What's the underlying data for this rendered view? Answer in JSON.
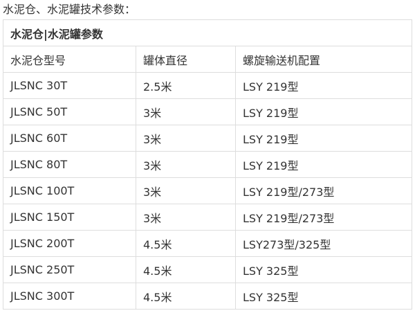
{
  "title": "水泥仓、水泥罐技术参数：",
  "table": {
    "caption": "水泥仓|水泥罐参数",
    "headers": [
      "水泥仓型号",
      "罐体直径",
      "螺旋输送机配置"
    ],
    "rows": [
      [
        "JLSNC 30T",
        "2.5米",
        "LSY 219型"
      ],
      [
        "JLSNC 50T",
        "3米",
        "LSY 219型"
      ],
      [
        "JLSNC 60T",
        "3米",
        "LSY 219型"
      ],
      [
        "JLSNC 80T",
        "3米",
        "LSY 219型"
      ],
      [
        "JLSNC 100T",
        "3米",
        "LSY 219型/273型"
      ],
      [
        "JLSNC 150T",
        "3米",
        "LSY 219型/273型"
      ],
      [
        "JLSNC 200T",
        "4.5米",
        "LSY273型/325型"
      ],
      [
        "JLSNC 250T",
        "4.5米",
        "LSY 325型"
      ],
      [
        "JLSNC 300T",
        "4.5米",
        "LSY 325型"
      ]
    ]
  }
}
